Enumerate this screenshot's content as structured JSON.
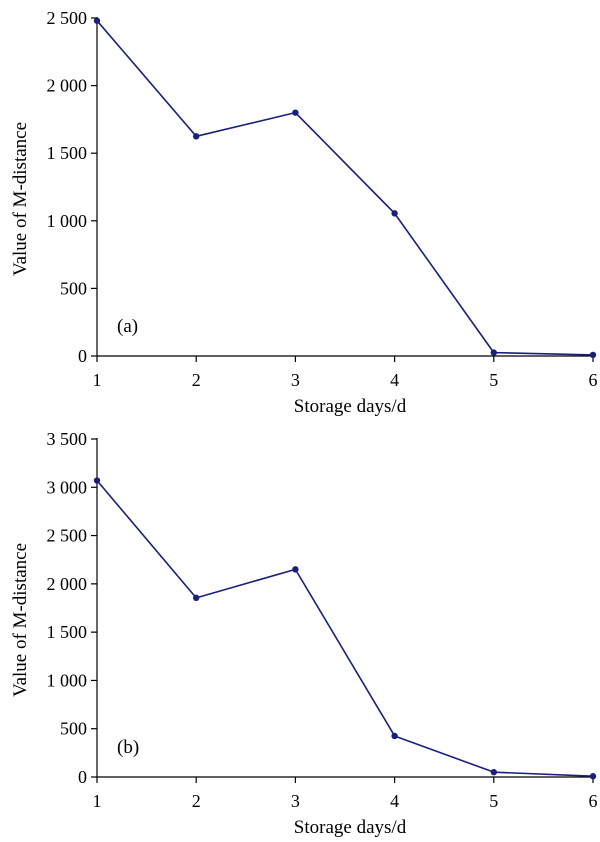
{
  "chart_data": [
    {
      "type": "line",
      "panel_label": "(a)",
      "xlabel": "Storage days/d",
      "ylabel": "Value of M-distance",
      "x": [
        1,
        2,
        3,
        4,
        5,
        6
      ],
      "series": [
        {
          "values": [
            2480,
            1625,
            1800,
            1055,
            25,
            8
          ],
          "color": "#1a1f7a"
        }
      ],
      "xlim": [
        1,
        6
      ],
      "ylim": [
        0,
        2500
      ],
      "xticks": [
        "1",
        "2",
        "3",
        "4",
        "5",
        "6"
      ],
      "yticks": [
        {
          "value": 0,
          "label": "0"
        },
        {
          "value": 500,
          "label": "500"
        },
        {
          "value": 1000,
          "label": "1 000"
        },
        {
          "value": 1500,
          "label": "1 500"
        },
        {
          "value": 2000,
          "label": "2 000"
        },
        {
          "value": 2500,
          "label": "2 500"
        }
      ],
      "grid": false
    },
    {
      "type": "line",
      "panel_label": "(b)",
      "xlabel": "Storage days/d",
      "ylabel": "Value of M-distance",
      "x": [
        1,
        2,
        3,
        4,
        5,
        6
      ],
      "series": [
        {
          "values": [
            3070,
            1855,
            2150,
            425,
            50,
            8
          ],
          "color": "#1a1f7a"
        }
      ],
      "xlim": [
        1,
        6
      ],
      "ylim": [
        0,
        3500
      ],
      "xticks": [
        "1",
        "2",
        "3",
        "4",
        "5",
        "6"
      ],
      "yticks": [
        {
          "value": 0,
          "label": "0"
        },
        {
          "value": 500,
          "label": "500"
        },
        {
          "value": 1000,
          "label": "1 000"
        },
        {
          "value": 1500,
          "label": "1 500"
        },
        {
          "value": 2000,
          "label": "2 000"
        },
        {
          "value": 2500,
          "label": "2 500"
        },
        {
          "value": 3000,
          "label": "3 000"
        },
        {
          "value": 3500,
          "label": "3 500"
        }
      ],
      "grid": false
    }
  ]
}
